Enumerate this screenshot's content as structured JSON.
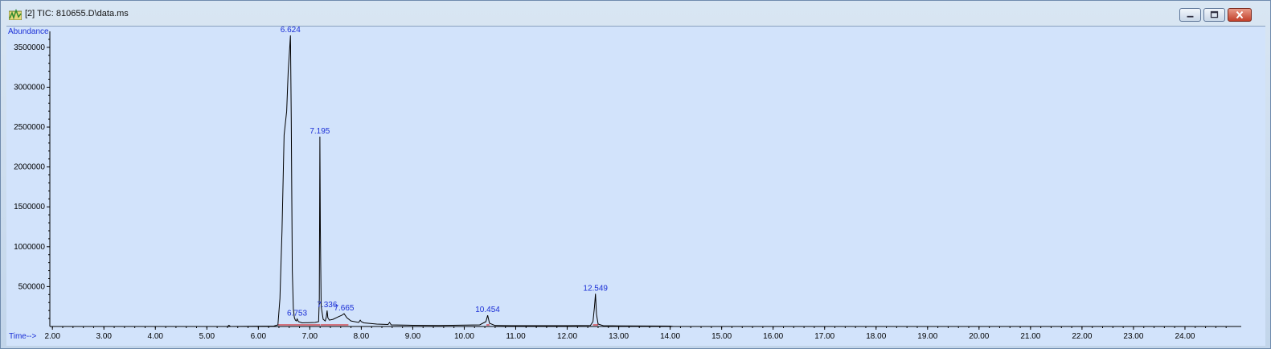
{
  "window": {
    "title": "[2] TIC: 810655.D\\data.ms",
    "icon": "chromatogram-app-icon",
    "controls": [
      "minimize-icon",
      "maximize-icon",
      "close-icon"
    ]
  },
  "chart_data": {
    "type": "line",
    "ylabel": "Abundance",
    "xlabel": "Time-->",
    "xlim": [
      1.95,
      25.0
    ],
    "ylim": [
      0,
      3700000
    ],
    "x_ticks": [
      "2.00",
      "3.00",
      "4.00",
      "5.00",
      "6.00",
      "7.00",
      "8.00",
      "9.00",
      "10.00",
      "11.00",
      "12.00",
      "13.00",
      "14.00",
      "15.00",
      "16.00",
      "17.00",
      "18.00",
      "19.00",
      "20.00",
      "21.00",
      "22.00",
      "23.00",
      "24.00"
    ],
    "y_ticks": [
      "500000",
      "1000000",
      "1500000",
      "2000000",
      "2500000",
      "3000000",
      "3500000"
    ],
    "y_tick_values": [
      500000,
      1000000,
      1500000,
      2000000,
      2500000,
      3000000,
      3500000
    ],
    "line_color": "#000000",
    "baseline_color": "#d40000",
    "label_color": "#1b2fd6",
    "series": [
      {
        "x": [
          1.95,
          5.4,
          5.43,
          5.46,
          6.3,
          6.38,
          6.42,
          6.46,
          6.5,
          6.55,
          6.58,
          6.61,
          6.624,
          6.64,
          6.66,
          6.68,
          6.7,
          6.72,
          6.74,
          6.753,
          6.78,
          6.85,
          7.1,
          7.17,
          7.185,
          7.195,
          7.205,
          7.22,
          7.26,
          7.3,
          7.32,
          7.336,
          7.35,
          7.38,
          7.45,
          7.55,
          7.62,
          7.665,
          7.72,
          7.8,
          7.95,
          7.98,
          8.0,
          8.05,
          8.3,
          8.52,
          8.55,
          8.58,
          9.0,
          9.5,
          10.3,
          10.42,
          10.454,
          10.49,
          10.6,
          11.0,
          12.0,
          12.45,
          12.5,
          12.53,
          12.549,
          12.57,
          12.6,
          12.7,
          13.0,
          14.0,
          14.06
        ],
        "y": [
          0,
          0,
          15000,
          0,
          5000,
          20000,
          350000,
          1200000,
          2400000,
          2700000,
          3200000,
          3500000,
          3650000,
          2600000,
          700000,
          220000,
          110000,
          80000,
          70000,
          95000,
          60000,
          45000,
          50000,
          60000,
          350000,
          2380000,
          1200000,
          250000,
          90000,
          70000,
          120000,
          200000,
          110000,
          80000,
          90000,
          120000,
          140000,
          160000,
          110000,
          70000,
          50000,
          80000,
          60000,
          45000,
          30000,
          25000,
          50000,
          20000,
          15000,
          12000,
          20000,
          60000,
          140000,
          40000,
          12000,
          10000,
          10000,
          12000,
          60000,
          250000,
          410000,
          150000,
          30000,
          10000,
          8000,
          5000,
          0
        ]
      }
    ],
    "peak_labels": [
      {
        "x": 6.624,
        "y": 3650000,
        "text": "6.624"
      },
      {
        "x": 6.753,
        "y": 95000,
        "text": "6.753"
      },
      {
        "x": 7.195,
        "y": 2380000,
        "text": "7.195"
      },
      {
        "x": 7.336,
        "y": 200000,
        "text": "7.336"
      },
      {
        "x": 7.665,
        "y": 160000,
        "text": "7.665"
      },
      {
        "x": 10.454,
        "y": 140000,
        "text": "10.454"
      },
      {
        "x": 12.549,
        "y": 410000,
        "text": "12.549"
      }
    ],
    "integration_baselines": [
      {
        "x": [
          6.38,
          7.2
        ]
      },
      {
        "x": [
          7.21,
          7.75
        ]
      },
      {
        "x": [
          10.43,
          10.49
        ]
      },
      {
        "x": [
          12.5,
          12.6
        ]
      }
    ]
  }
}
